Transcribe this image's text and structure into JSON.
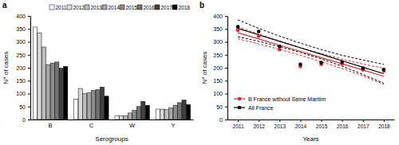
{
  "chart_data": [
    {
      "type": "bar",
      "title": "a",
      "x_label": "Serogroups",
      "y_label": "N° of cases",
      "categories": [
        "B",
        "C",
        "W",
        "Y"
      ],
      "series": [
        {
          "name": "2011",
          "color": "#ffffff",
          "values": [
            357,
            78,
            15,
            40
          ]
        },
        {
          "name": "2012",
          "color": "#d9d9d9",
          "values": [
            335,
            120,
            15,
            40
          ]
        },
        {
          "name": "2013",
          "color": "#bdbdbd",
          "values": [
            280,
            100,
            15,
            38
          ]
        },
        {
          "name": "2014",
          "color": "#a6a6a6",
          "values": [
            212,
            103,
            25,
            45
          ]
        },
        {
          "name": "2015",
          "color": "#8c8c8c",
          "values": [
            218,
            112,
            35,
            55
          ]
        },
        {
          "name": "2016",
          "color": "#737373",
          "values": [
            222,
            115,
            50,
            65
          ]
        },
        {
          "name": "2017",
          "color": "#404040",
          "values": [
            198,
            125,
            70,
            75
          ]
        },
        {
          "name": "2018",
          "color": "#000000",
          "values": [
            205,
            90,
            55,
            58
          ]
        }
      ],
      "ylim": [
        0,
        400
      ],
      "yticks": [
        0,
        50,
        100,
        150,
        200,
        250,
        300,
        350,
        400
      ],
      "legend": "top"
    },
    {
      "type": "line",
      "title": "b",
      "x_label": "Years",
      "y_label": "N° of cases",
      "x": [
        2011,
        2012,
        2013,
        2014,
        2015,
        2016,
        2017,
        2018
      ],
      "series": [
        {
          "name": "B France without Seine Maritim",
          "color": "#e8262b",
          "marker": "circle",
          "values": [
            345,
            322,
            270,
            205,
            213,
            215,
            192,
            188
          ],
          "fit": [
            335,
            311,
            287,
            263,
            239,
            215,
            191,
            167
          ],
          "fit_lower": [
            312,
            292,
            271,
            248,
            223,
            197,
            168,
            136
          ],
          "fit_upper": [
            358,
            330,
            303,
            278,
            255,
            233,
            214,
            198
          ]
        },
        {
          "name": "All France",
          "color": "#000000",
          "marker": "circle",
          "values": [
            358,
            340,
            282,
            213,
            220,
            222,
            198,
            193
          ],
          "fit": [
            352,
            327,
            302,
            277,
            252,
            227,
            202,
            177
          ],
          "fit_lower": [
            320,
            302,
            282,
            259,
            234,
            206,
            174,
            140
          ],
          "fit_upper": [
            385,
            352,
            322,
            295,
            270,
            248,
            230,
            213
          ]
        }
      ],
      "xlim": [
        2010.5,
        2018.5
      ],
      "xticks": [
        2011,
        2012,
        2013,
        2014,
        2015,
        2016,
        2017,
        2018
      ],
      "ylim": [
        0,
        400
      ],
      "yticks": [
        0,
        50,
        100,
        150,
        200,
        250,
        300,
        350,
        400
      ],
      "legend": "lower left"
    }
  ]
}
